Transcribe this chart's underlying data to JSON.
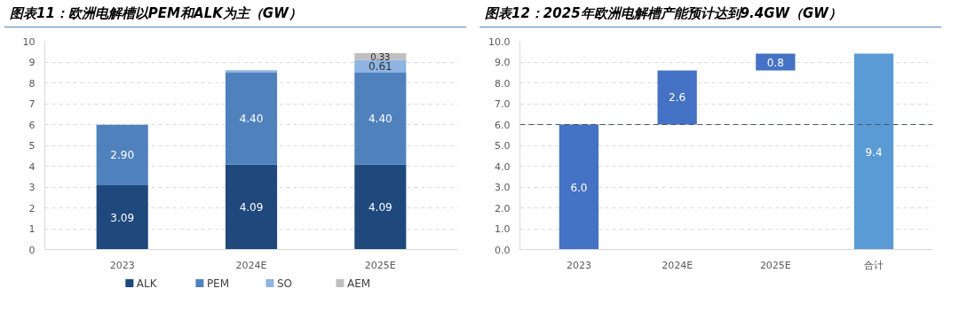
{
  "chart_data": [
    {
      "type": "bar",
      "title": "图表11：欧洲电解槽以PEM和ALK为主（GW）",
      "categories": [
        "2023",
        "2024E",
        "2025E"
      ],
      "stacked": true,
      "series": [
        {
          "name": "ALK",
          "color": "#1f497d",
          "values": [
            3.09,
            4.09,
            4.09
          ],
          "value_labels": [
            "3.09",
            "4.09",
            "4.09"
          ]
        },
        {
          "name": "PEM",
          "color": "#4f81bd",
          "values": [
            2.9,
            4.4,
            4.4
          ],
          "value_labels": [
            "2.90",
            "4.40",
            "4.40"
          ]
        },
        {
          "name": "SO",
          "color": "#8db4e2",
          "values": [
            null,
            0.12,
            0.61
          ],
          "value_labels": [
            null,
            null,
            "0.61"
          ]
        },
        {
          "name": "AEM",
          "color": "#bfbfbf",
          "values": [
            null,
            null,
            0.33
          ],
          "value_labels": [
            null,
            null,
            "0.33"
          ]
        }
      ],
      "ylim": [
        0,
        10
      ],
      "yticks": [
        0,
        1,
        2,
        3,
        4,
        5,
        6,
        7,
        8,
        9,
        10
      ],
      "grid": "y",
      "legend": "bottom"
    },
    {
      "type": "bar",
      "title": "图表12：2025年欧洲电解槽产能预计达到9.4GW（GW）",
      "categories": [
        "2023",
        "2024E",
        "2025E",
        "合计"
      ],
      "values": [
        6.0,
        2.6,
        0.8,
        9.4
      ],
      "base": [
        0,
        6.0,
        8.6,
        0
      ],
      "colors": [
        "#4472c4",
        "#4472c4",
        "#4472c4",
        "#5b9bd5"
      ],
      "value_labels": [
        "6.0",
        "2.6",
        "0.8",
        "9.4"
      ],
      "ylim": [
        0,
        10
      ],
      "yticks": [
        {
          "value": 0,
          "label": "0.0"
        },
        {
          "value": 1,
          "label": "1.0"
        },
        {
          "value": 2,
          "label": "2.0"
        },
        {
          "value": 3,
          "label": "3.0"
        },
        {
          "value": 4,
          "label": "4.0"
        },
        {
          "value": 5,
          "label": "5.0"
        },
        {
          "value": 6,
          "label": "6.0"
        },
        {
          "value": 7,
          "label": "7.0"
        },
        {
          "value": 8,
          "label": "8.0"
        },
        {
          "value": 9,
          "label": "9.0"
        },
        {
          "value": 10,
          "label": "10.0"
        }
      ],
      "ref_lines": [
        {
          "axis": "y",
          "value": 6.0,
          "color": "#44546a",
          "line_style": "dashed"
        }
      ],
      "grid": "y"
    }
  ]
}
